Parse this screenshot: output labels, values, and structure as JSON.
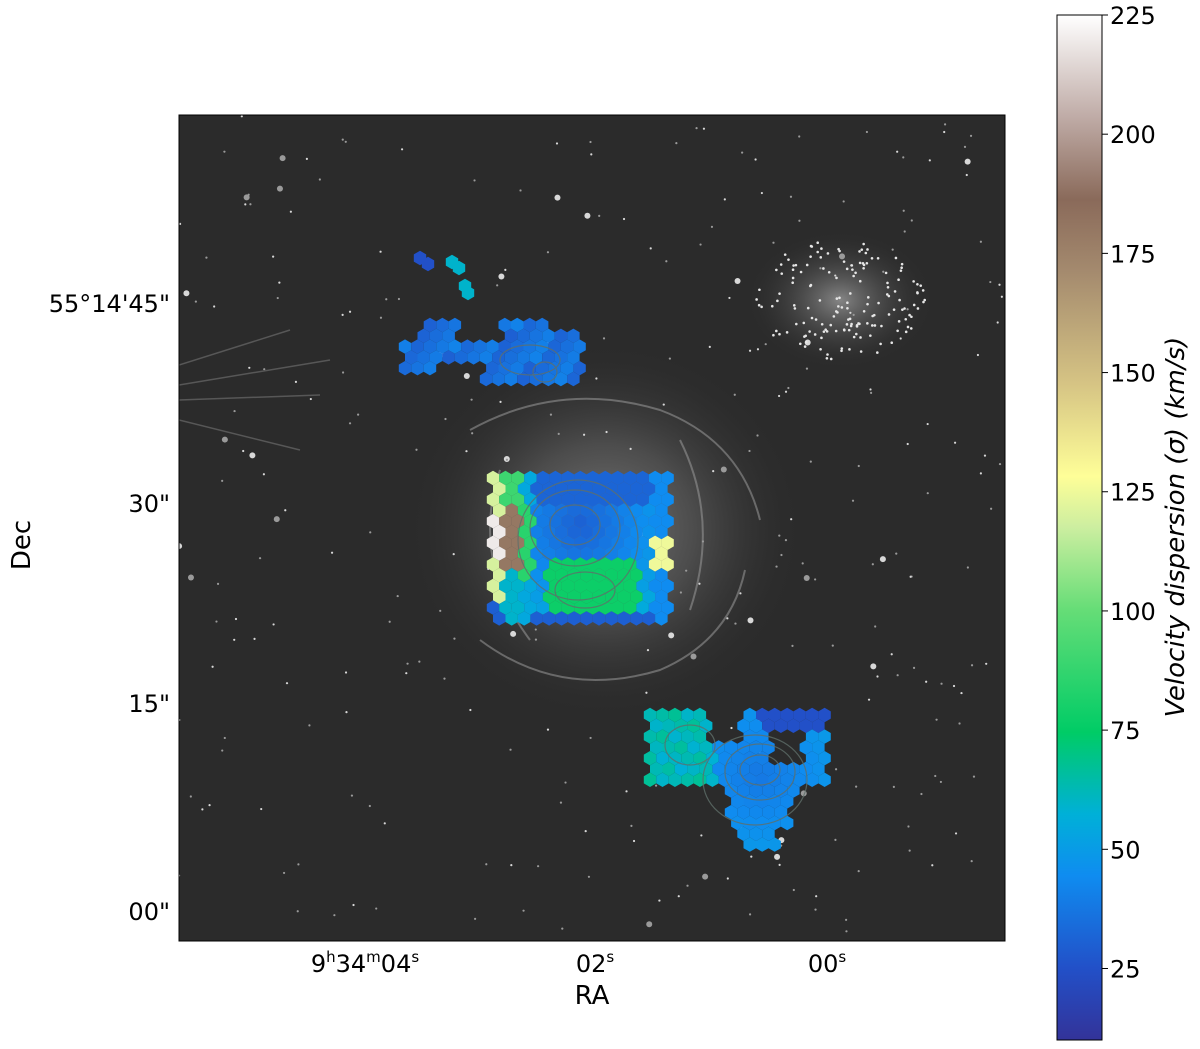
{
  "chart_data": {
    "type": "heatmap",
    "title": "",
    "xlabel": "RA",
    "ylabel": "Dec",
    "x_ticks": [
      {
        "h": "9",
        "m": "34",
        "s": "04",
        "label": "9h34m04s"
      },
      {
        "s": "02",
        "label": "02s"
      },
      {
        "s": "00",
        "label": "00s"
      }
    ],
    "y_ticks": [
      "55°14'45\"",
      "30\"",
      "15\"",
      "00\""
    ],
    "y_tick_values_arcsec": [
      45,
      30,
      15,
      0
    ],
    "colorbar": {
      "label": "Velocity dispersion (σ) (km/s)",
      "label_segments": {
        "pre": "Velocity dispersion (",
        "sym": "σ",
        "post": ") (km/s)"
      },
      "ticks": [
        25,
        50,
        75,
        100,
        125,
        150,
        175,
        200,
        225
      ],
      "vmin": 10,
      "vmax": 225,
      "colormap": "terrain"
    },
    "regions": [
      {
        "name": "center",
        "dispersion_range_kms": [
          20,
          225
        ],
        "typical_kms": 60
      },
      {
        "name": "northwest",
        "dispersion_range_kms": [
          25,
          45
        ],
        "typical_kms": 32
      },
      {
        "name": "southeast",
        "dispersion_range_kms": [
          25,
          70
        ],
        "typical_kms": 45
      }
    ],
    "background": "grayscale sky image",
    "grid": false,
    "legend": "none"
  }
}
